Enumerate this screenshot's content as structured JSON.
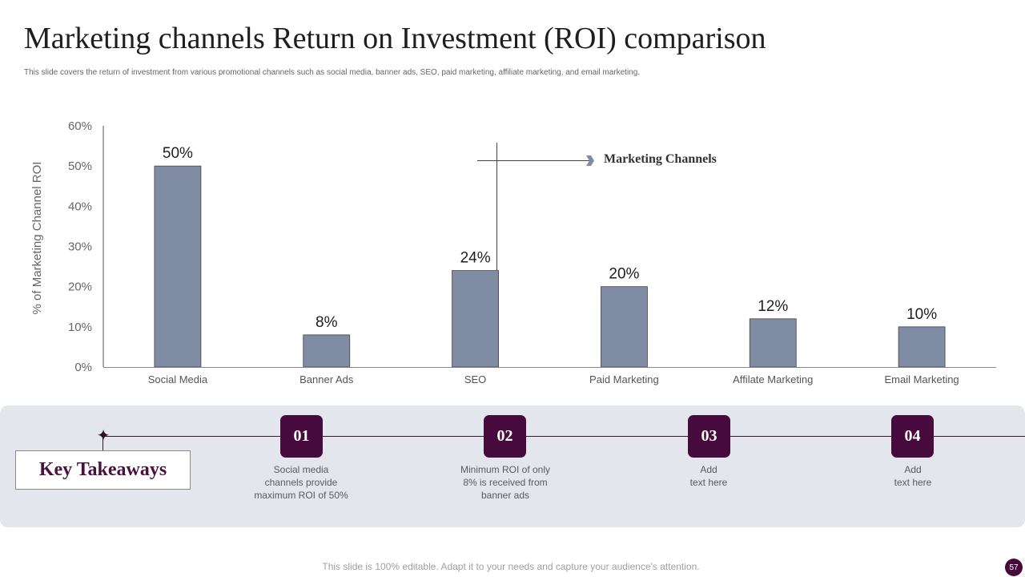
{
  "slide": {
    "title": "Marketing channels Return on Investment (ROI) comparison",
    "subtitle": "This slide covers the return of investment from various promotional channels such as social media, banner ads, SEO, paid marketing, affiliate marketing, and email marketing.",
    "footer": "This slide is 100% editable. Adapt it to your needs and capture your audience's attention.",
    "page_number": "57"
  },
  "callout": {
    "label": "Marketing Channels"
  },
  "chart_data": {
    "type": "bar",
    "categories": [
      "Social Media",
      "Banner Ads",
      "SEO",
      "Paid Marketing",
      "Affilate Marketing",
      "Email Marketing"
    ],
    "values": [
      50,
      8,
      24,
      20,
      12,
      10
    ],
    "data_labels": [
      "50%",
      "8%",
      "24%",
      "20%",
      "12%",
      "10%"
    ],
    "yticks": [
      "0%",
      "10%",
      "20%",
      "30%",
      "40%",
      "50%",
      "60%"
    ],
    "ylabel": "% of Marketing Channel ROI",
    "xlabel": "",
    "ylim": [
      0,
      60
    ],
    "grid": false,
    "bar_color": "#7f8ca3"
  },
  "takeaways": {
    "heading": "Key Takeaways",
    "items": [
      {
        "number": "01",
        "text": "Social media\nchannels provide\nmaximum ROI of 50%"
      },
      {
        "number": "02",
        "text": "Minimum ROI of only\n8% is received  from\nbanner ads"
      },
      {
        "number": "03",
        "text": "Add\ntext here"
      },
      {
        "number": "04",
        "text": "Add\ntext here"
      }
    ]
  },
  "colors": {
    "accent": "#470a3c",
    "band": "#e4e6ed",
    "bar": "#7f8ca3"
  }
}
